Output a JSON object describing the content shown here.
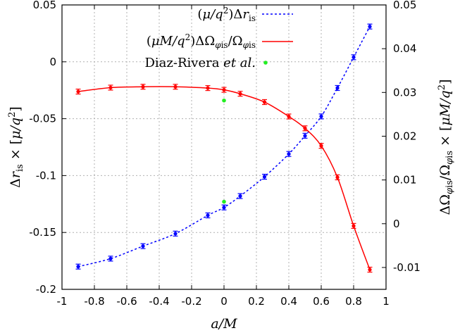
{
  "chart_data": {
    "type": "line",
    "xlabel": "a/M",
    "ylabel_left": "Δr_is × [μ/q²]",
    "ylabel_right": "ΔΩ_φis/Ω_φis × [μM/q²]",
    "xlim": [
      -1,
      1
    ],
    "ylim_left": [
      -0.2,
      0.05
    ],
    "ylim_right": [
      -0.015,
      0.05
    ],
    "x_ticks": [
      "-1",
      "-0.8",
      "-0.6",
      "-0.4",
      "-0.2",
      "0",
      "0.2",
      "0.4",
      "0.6",
      "0.8",
      "1"
    ],
    "y_ticks_left": [
      "0.05",
      "0",
      "-0.05",
      "-0.1",
      "-0.15",
      "-0.2"
    ],
    "y_ticks_right": [
      "0.05",
      "0.04",
      "0.03",
      "0.02",
      "0.01",
      "0",
      "-0.01"
    ],
    "grid": true,
    "legend_position": "top-right",
    "series": [
      {
        "name": "(μ/q²)Δr_is",
        "axis": "left",
        "color": "#0000ff",
        "style": "dashed",
        "x": [
          -0.9,
          -0.7,
          -0.5,
          -0.3,
          -0.1,
          0,
          0.1,
          0.25,
          0.4,
          0.5,
          0.6,
          0.7,
          0.8,
          0.9
        ],
        "y": [
          -0.18,
          -0.173,
          -0.162,
          -0.151,
          -0.135,
          -0.128,
          -0.118,
          -0.101,
          -0.081,
          -0.065,
          -0.048,
          -0.023,
          0.004,
          0.031
        ]
      },
      {
        "name": "(μM/q²)ΔΩ_φis/Ω_φis",
        "axis": "right",
        "color": "#ff0000",
        "style": "solid",
        "x": [
          -0.9,
          -0.7,
          -0.5,
          -0.3,
          -0.1,
          0,
          0.1,
          0.25,
          0.4,
          0.5,
          0.6,
          0.7,
          0.8,
          0.9
        ],
        "y": [
          0.0302,
          0.0311,
          0.0313,
          0.0313,
          0.031,
          0.0306,
          0.0297,
          0.0278,
          0.0245,
          0.0218,
          0.0178,
          0.0106,
          -0.0005,
          -0.0105
        ]
      },
      {
        "name": "Diaz-Rivera et al.",
        "axis": "left",
        "color": "#22ee22",
        "style": "points",
        "x": [
          0,
          0
        ],
        "y": [
          -0.034,
          -0.123
        ]
      }
    ],
    "legend": [
      {
        "math": "(μ/q²)Δr",
        "sub": "is",
        "tail": "",
        "italic": ""
      },
      {
        "math": "(μM/q²)ΔΩ",
        "sub": "φis",
        "tail": "/Ω",
        "sub2": "φis"
      },
      {
        "math": "Diaz-Rivera ",
        "italic": "et al.",
        "tail": ""
      }
    ]
  }
}
